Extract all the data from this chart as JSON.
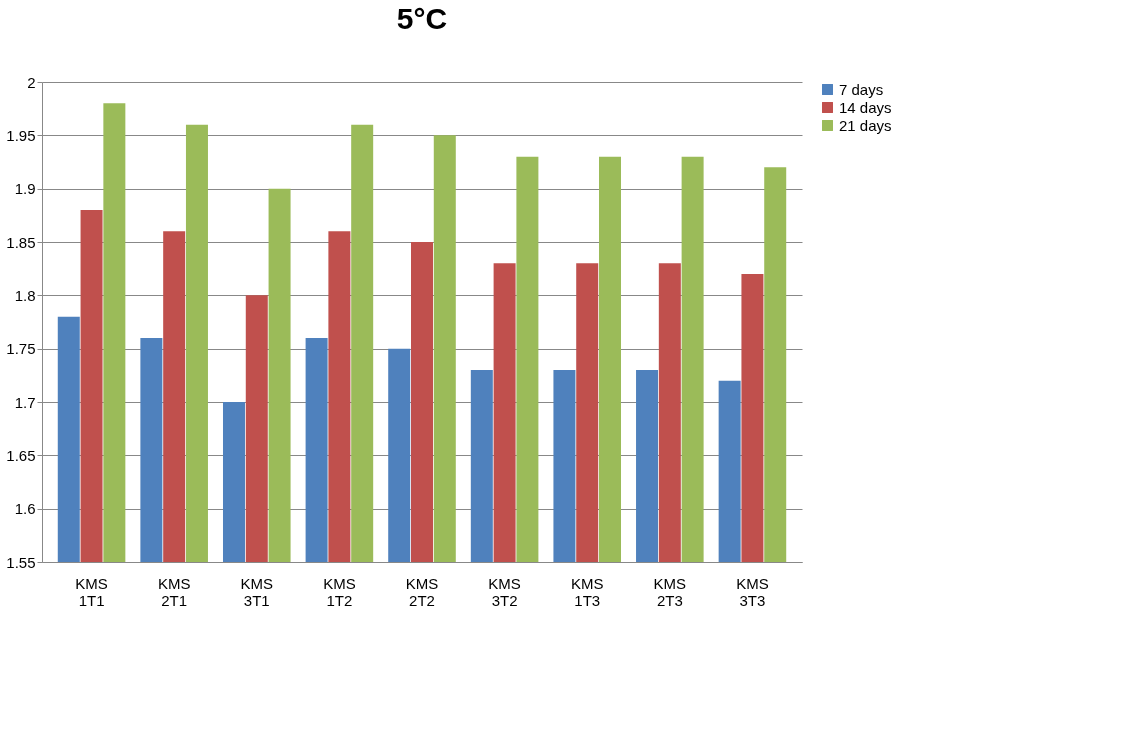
{
  "chart_data": {
    "type": "bar",
    "title": "5°C",
    "categories": [
      "KMS 1T1",
      "KMS 2T1",
      "KMS 3T1",
      "KMS 1T2",
      "KMS 2T2",
      "KMS 3T2",
      "KMS 1T3",
      "KMS 2T3",
      "KMS 3T3"
    ],
    "series": [
      {
        "name": "7  days",
        "color": "#4f81bd",
        "values": [
          1.78,
          1.76,
          1.7,
          1.76,
          1.75,
          1.73,
          1.73,
          1.73,
          1.72
        ]
      },
      {
        "name": "14  days",
        "color": "#c0504d",
        "values": [
          1.88,
          1.86,
          1.8,
          1.86,
          1.85,
          1.83,
          1.83,
          1.83,
          1.82
        ]
      },
      {
        "name": "21  days",
        "color": "#9bbb59",
        "values": [
          1.98,
          1.96,
          1.9,
          1.96,
          1.95,
          1.93,
          1.93,
          1.93,
          1.92
        ]
      }
    ],
    "ylim": [
      1.55,
      2
    ],
    "yticks": [
      1.55,
      1.6,
      1.65,
      1.7,
      1.75,
      1.8,
      1.85,
      1.9,
      1.95,
      2
    ],
    "grid": "y",
    "legend": "right"
  }
}
